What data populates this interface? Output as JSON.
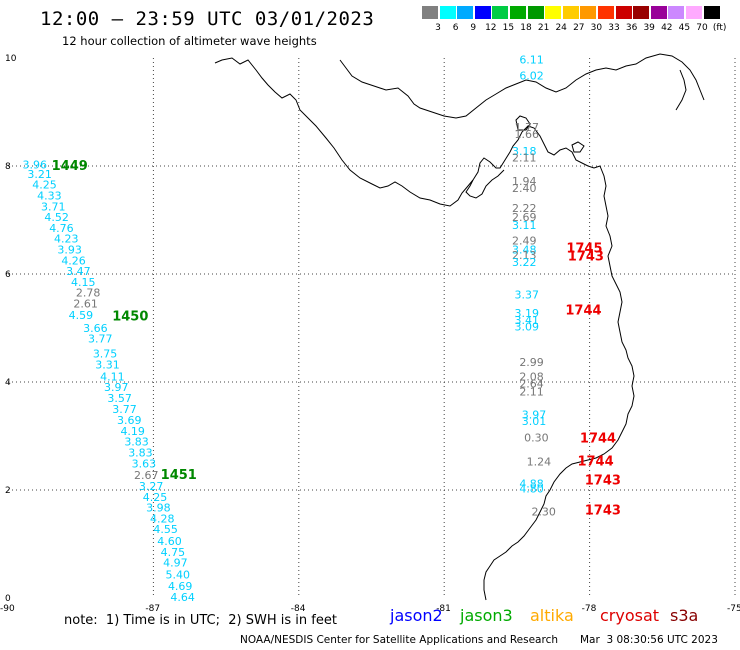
{
  "header": {
    "title": "12:00 – 23:59 UTC 03/01/2023",
    "subtitle": "12 hour collection of altimeter wave heights"
  },
  "colorbar": {
    "colors": [
      "#808080",
      "#00ffff",
      "#00aaff",
      "#0000ff",
      "#00cc44",
      "#00aa00",
      "#009900",
      "#ffff00",
      "#ffcc00",
      "#ff9900",
      "#ff3300",
      "#cc0000",
      "#990000",
      "#990099",
      "#cc88ff",
      "#ffaaff",
      "#000000"
    ],
    "labels": [
      "3",
      "6",
      "9",
      "12",
      "15",
      "18",
      "21",
      "24",
      "27",
      "30",
      "33",
      "36",
      "39",
      "42",
      "45",
      "70",
      "(ft)"
    ]
  },
  "axes": {
    "x_ticks": [
      "-90",
      "-87",
      "-84",
      "-81",
      "-78",
      "-75"
    ],
    "y_ticks": [
      "0",
      "2",
      "4",
      "6",
      "8",
      "10"
    ]
  },
  "legend": {
    "note": "note:  1) Time is in UTC;  2) SWH is in feet",
    "satellites": [
      {
        "name": "jason2",
        "color": "#0000ff"
      },
      {
        "name": "jason3",
        "color": "#00aa00"
      },
      {
        "name": "altika",
        "color": "#ffaa00"
      },
      {
        "name": "cryosat",
        "color": "#dd0000"
      },
      {
        "name": "s3a",
        "color": "#880000"
      }
    ]
  },
  "footer": {
    "credit": "NOAA/NESDIS Center for Satellite Applications and Research",
    "timestamp": "Mar  3 08:30:56 UTC 2023"
  },
  "map_data": {
    "lon_range": [
      -90,
      -75
    ],
    "lat_range": [
      0,
      10
    ],
    "labels": [
      {
        "t": "3.96",
        "lon": -89.7,
        "lat": 7.95,
        "c": "cyan"
      },
      {
        "t": "3.21",
        "lon": -89.6,
        "lat": 7.78,
        "c": "cyan"
      },
      {
        "t": "4.25",
        "lon": -89.5,
        "lat": 7.58,
        "c": "cyan"
      },
      {
        "t": "4.33",
        "lon": -89.4,
        "lat": 7.38,
        "c": "cyan"
      },
      {
        "t": "3.71",
        "lon": -89.32,
        "lat": 7.18,
        "c": "cyan"
      },
      {
        "t": "4.52",
        "lon": -89.25,
        "lat": 6.98,
        "c": "cyan"
      },
      {
        "t": "4.76",
        "lon": -89.15,
        "lat": 6.78,
        "c": "cyan"
      },
      {
        "t": "4.23",
        "lon": -89.05,
        "lat": 6.58,
        "c": "cyan"
      },
      {
        "t": "3.93",
        "lon": -88.98,
        "lat": 6.38,
        "c": "cyan"
      },
      {
        "t": "4.26",
        "lon": -88.9,
        "lat": 6.18,
        "c": "cyan"
      },
      {
        "t": "3.47",
        "lon": -88.8,
        "lat": 5.98,
        "c": "cyan"
      },
      {
        "t": "4.15",
        "lon": -88.7,
        "lat": 5.78,
        "c": "cyan"
      },
      {
        "t": "2.78",
        "lon": -88.6,
        "lat": 5.58,
        "c": "gray"
      },
      {
        "t": "2.61",
        "lon": -88.65,
        "lat": 5.38,
        "c": "gray"
      },
      {
        "t": "4.59",
        "lon": -88.75,
        "lat": 5.17,
        "c": "cyan"
      },
      {
        "t": "3.66",
        "lon": -88.45,
        "lat": 4.93,
        "c": "cyan"
      },
      {
        "t": "3.77",
        "lon": -88.35,
        "lat": 4.73,
        "c": "cyan"
      },
      {
        "t": "3.75",
        "lon": -88.25,
        "lat": 4.45,
        "c": "cyan"
      },
      {
        "t": "3.31",
        "lon": -88.2,
        "lat": 4.25,
        "c": "cyan"
      },
      {
        "t": "4.11",
        "lon": -88.1,
        "lat": 4.03,
        "c": "cyan"
      },
      {
        "t": "3.97",
        "lon": -88.02,
        "lat": 3.83,
        "c": "cyan"
      },
      {
        "t": "3.57",
        "lon": -87.95,
        "lat": 3.63,
        "c": "cyan"
      },
      {
        "t": "3.77",
        "lon": -87.85,
        "lat": 3.43,
        "c": "cyan"
      },
      {
        "t": "3.69",
        "lon": -87.75,
        "lat": 3.22,
        "c": "cyan"
      },
      {
        "t": "4.19",
        "lon": -87.68,
        "lat": 3.02,
        "c": "cyan"
      },
      {
        "t": "3.83",
        "lon": -87.6,
        "lat": 2.82,
        "c": "cyan"
      },
      {
        "t": "3.83",
        "lon": -87.52,
        "lat": 2.62,
        "c": "cyan"
      },
      {
        "t": "3.63",
        "lon": -87.45,
        "lat": 2.42,
        "c": "cyan"
      },
      {
        "t": "2.67",
        "lon": -87.4,
        "lat": 2.2,
        "c": "gray"
      },
      {
        "t": "3.27",
        "lon": -87.3,
        "lat": 2.0,
        "c": "cyan"
      },
      {
        "t": "4.25",
        "lon": -87.22,
        "lat": 1.8,
        "c": "cyan"
      },
      {
        "t": "3.98",
        "lon": -87.15,
        "lat": 1.6,
        "c": "cyan"
      },
      {
        "t": "4.28",
        "lon": -87.07,
        "lat": 1.4,
        "c": "cyan"
      },
      {
        "t": "4.55",
        "lon": -87.0,
        "lat": 1.2,
        "c": "cyan"
      },
      {
        "t": "4.60",
        "lon": -86.92,
        "lat": 0.98,
        "c": "cyan"
      },
      {
        "t": "4.75",
        "lon": -86.85,
        "lat": 0.78,
        "c": "cyan"
      },
      {
        "t": "4.97",
        "lon": -86.8,
        "lat": 0.58,
        "c": "cyan"
      },
      {
        "t": "5.40",
        "lon": -86.75,
        "lat": 0.36,
        "c": "cyan"
      },
      {
        "t": "4.69",
        "lon": -86.7,
        "lat": 0.15,
        "c": "cyan"
      },
      {
        "t": "4.64",
        "lon": -86.65,
        "lat": -0.06,
        "c": "cyan"
      },
      {
        "t": "6.11",
        "lon": -79.45,
        "lat": 9.9,
        "c": "cyan"
      },
      {
        "t": "6.02",
        "lon": -79.45,
        "lat": 9.6,
        "c": "cyan"
      },
      {
        "t": "1.77",
        "lon": -79.55,
        "lat": 8.65,
        "c": "gray"
      },
      {
        "t": "1.66",
        "lon": -79.55,
        "lat": 8.52,
        "c": "gray"
      },
      {
        "t": "3.18",
        "lon": -79.6,
        "lat": 8.2,
        "c": "cyan"
      },
      {
        "t": "2.11",
        "lon": -79.6,
        "lat": 8.08,
        "c": "gray"
      },
      {
        "t": "1.94",
        "lon": -79.6,
        "lat": 7.65,
        "c": "gray"
      },
      {
        "t": "2.40",
        "lon": -79.6,
        "lat": 7.52,
        "c": "gray"
      },
      {
        "t": "2.22",
        "lon": -79.6,
        "lat": 7.15,
        "c": "gray"
      },
      {
        "t": "2.69",
        "lon": -79.6,
        "lat": 6.98,
        "c": "gray"
      },
      {
        "t": "3.11",
        "lon": -79.6,
        "lat": 6.83,
        "c": "cyan"
      },
      {
        "t": "2.49",
        "lon": -79.6,
        "lat": 6.55,
        "c": "gray"
      },
      {
        "t": "3.48",
        "lon": -79.6,
        "lat": 6.38,
        "c": "cyan"
      },
      {
        "t": "2.13",
        "lon": -79.6,
        "lat": 6.28,
        "c": "gray"
      },
      {
        "t": "3.22",
        "lon": -79.6,
        "lat": 6.15,
        "c": "cyan"
      },
      {
        "t": "3.37",
        "lon": -79.55,
        "lat": 5.55,
        "c": "cyan"
      },
      {
        "t": "3.19",
        "lon": -79.55,
        "lat": 5.2,
        "c": "cyan"
      },
      {
        "t": "3.41",
        "lon": -79.55,
        "lat": 5.07,
        "c": "cyan"
      },
      {
        "t": "3.09",
        "lon": -79.55,
        "lat": 4.95,
        "c": "cyan"
      },
      {
        "t": "2.99",
        "lon": -79.45,
        "lat": 4.3,
        "c": "gray"
      },
      {
        "t": "2.08",
        "lon": -79.45,
        "lat": 4.03,
        "c": "gray"
      },
      {
        "t": "2.64",
        "lon": -79.45,
        "lat": 3.9,
        "c": "gray"
      },
      {
        "t": "2.11",
        "lon": -79.45,
        "lat": 3.75,
        "c": "gray"
      },
      {
        "t": "3.97",
        "lon": -79.4,
        "lat": 3.32,
        "c": "cyan"
      },
      {
        "t": "3.01",
        "lon": -79.4,
        "lat": 3.2,
        "c": "cyan"
      },
      {
        "t": "0.30",
        "lon": -79.35,
        "lat": 2.9,
        "c": "gray"
      },
      {
        "t": "1.24",
        "lon": -79.3,
        "lat": 2.45,
        "c": "gray"
      },
      {
        "t": "4.88",
        "lon": -79.45,
        "lat": 2.05,
        "c": "cyan"
      },
      {
        "t": "4.80",
        "lon": -79.45,
        "lat": 1.95,
        "c": "cyan"
      },
      {
        "t": "2.30",
        "lon": -79.2,
        "lat": 1.53,
        "c": "gray"
      },
      {
        "t": "1449",
        "lon": -89.1,
        "lat": 7.93,
        "c": "green",
        "big": true
      },
      {
        "t": "1450",
        "lon": -87.85,
        "lat": 5.14,
        "c": "green",
        "big": true
      },
      {
        "t": "1451",
        "lon": -86.85,
        "lat": 2.2,
        "c": "green",
        "big": true
      },
      {
        "t": "1745",
        "lon": -78.48,
        "lat": 6.4,
        "c": "red",
        "big": true
      },
      {
        "t": "1743",
        "lon": -78.45,
        "lat": 6.25,
        "c": "red",
        "big": true
      },
      {
        "t": "1744",
        "lon": -78.5,
        "lat": 5.25,
        "c": "red",
        "big": true
      },
      {
        "t": "1744",
        "lon": -78.2,
        "lat": 2.88,
        "c": "red",
        "big": true
      },
      {
        "t": "1744",
        "lon": -78.25,
        "lat": 2.45,
        "c": "red",
        "big": true
      },
      {
        "t": "1743",
        "lon": -78.1,
        "lat": 2.1,
        "c": "red",
        "big": true
      },
      {
        "t": "1743",
        "lon": -78.1,
        "lat": 1.55,
        "c": "red",
        "big": true
      }
    ]
  }
}
